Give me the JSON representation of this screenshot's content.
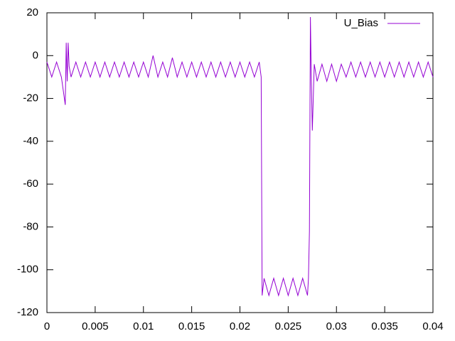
{
  "chart_data": {
    "type": "line",
    "x": [
      0,
      0.0005,
      0.001,
      0.0015,
      0.0019,
      0.002,
      0.0021,
      0.0022,
      0.0023,
      0.0025,
      0.003,
      0.0035,
      0.004,
      0.0045,
      0.005,
      0.0055,
      0.006,
      0.0065,
      0.007,
      0.0075,
      0.008,
      0.0085,
      0.009,
      0.0095,
      0.01,
      0.0105,
      0.011,
      0.0115,
      0.012,
      0.0125,
      0.013,
      0.0135,
      0.014,
      0.0145,
      0.015,
      0.0155,
      0.016,
      0.0165,
      0.017,
      0.0175,
      0.018,
      0.0185,
      0.019,
      0.0195,
      0.02,
      0.0205,
      0.021,
      0.0215,
      0.022,
      0.0222,
      0.0223,
      0.0225,
      0.023,
      0.0235,
      0.024,
      0.0245,
      0.025,
      0.0255,
      0.026,
      0.0265,
      0.027,
      0.0271,
      0.0272,
      0.0273,
      0.0274,
      0.0275,
      0.0277,
      0.028,
      0.0285,
      0.029,
      0.0295,
      0.03,
      0.0305,
      0.031,
      0.0315,
      0.032,
      0.0325,
      0.033,
      0.0335,
      0.034,
      0.0345,
      0.035,
      0.0355,
      0.036,
      0.0365,
      0.037,
      0.0375,
      0.038,
      0.0385,
      0.039,
      0.0395,
      0.04
    ],
    "series": [
      {
        "name": "U_Bias",
        "color": "#9400d3",
        "values": [
          -3,
          -10,
          -3,
          -10,
          -23,
          6,
          -12,
          6,
          -5,
          -10,
          -3,
          -10,
          -3,
          -10,
          -3,
          -10,
          -3,
          -10,
          -3,
          -10,
          -3,
          -10,
          -3,
          -10,
          -3,
          -10,
          0,
          -10,
          -3,
          -10,
          -1,
          -10,
          -3,
          -10,
          -3,
          -10,
          -3,
          -10,
          -3,
          -10,
          -3,
          -10,
          -3,
          -10,
          -3,
          -10,
          -3,
          -10,
          -3,
          -10,
          -112,
          -104,
          -112,
          -104,
          -112,
          -104,
          -112,
          -104,
          -112,
          -104,
          -112,
          -104,
          -82,
          18,
          -12,
          -35,
          -4,
          -12,
          -4,
          -12,
          -4,
          -12,
          -4,
          -10,
          -3,
          -10,
          -3,
          -10,
          -3,
          -10,
          -3,
          -10,
          -3,
          -10,
          -3,
          -10,
          -3,
          -10,
          -3,
          -10,
          -3,
          -10
        ]
      }
    ],
    "xlim": [
      0,
      0.04
    ],
    "xticks": [
      0,
      0.005,
      0.01,
      0.015,
      0.02,
      0.025,
      0.03,
      0.035,
      0.04
    ],
    "ylim": [
      -120,
      20
    ],
    "yticks": [
      -120,
      -100,
      -80,
      -60,
      -40,
      -20,
      0,
      20
    ],
    "legend": "top-right"
  }
}
